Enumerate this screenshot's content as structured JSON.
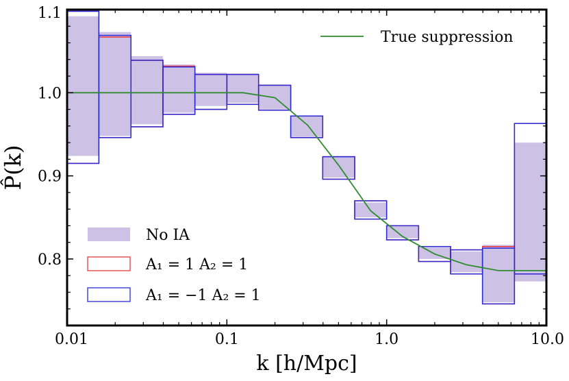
{
  "chart_data": {
    "type": "area",
    "xlabel": "k  [h/Mpc]",
    "ylabel": "P̂(k)",
    "xscale": "log",
    "xlim": [
      0.01,
      10.0
    ],
    "ylim": [
      0.72,
      1.1
    ],
    "x_tick_values": [
      0.01,
      0.1,
      1.0,
      10.0
    ],
    "x_tick_labels": [
      "0.01",
      "0.1",
      "1.0",
      "10.0"
    ],
    "y_tick_values": [
      0.8,
      0.9,
      1.0,
      1.1
    ],
    "y_tick_labels": [
      "0.8",
      "0.9",
      "1.0",
      "1.1"
    ],
    "bin_edges": [
      0.01,
      0.0158,
      0.0251,
      0.0398,
      0.0631,
      0.1,
      0.158,
      0.251,
      0.398,
      0.631,
      1.0,
      1.585,
      2.512,
      3.981,
      6.31,
      10.0
    ],
    "series": [
      {
        "name": "No IA",
        "style": "filled",
        "color": "#cdc1e6",
        "lower": [
          0.924,
          0.948,
          0.962,
          0.976,
          0.984,
          0.988,
          0.98,
          0.947,
          0.898,
          0.85,
          0.825,
          0.8,
          0.784,
          0.748,
          0.773
        ],
        "upper": [
          1.092,
          1.073,
          1.044,
          1.034,
          1.024,
          1.023,
          1.009,
          0.972,
          0.924,
          0.868,
          0.839,
          0.814,
          0.809,
          0.817,
          0.94
        ]
      },
      {
        "name": "A₁ = 1   A₂ = 1",
        "style": "outline",
        "color": "#e8383d",
        "lower": [
          0.915,
          0.946,
          0.959,
          0.974,
          0.98,
          0.986,
          0.979,
          0.946,
          0.896,
          0.848,
          0.823,
          0.797,
          0.782,
          0.746,
          0.782
        ],
        "upper": [
          1.098,
          1.067,
          1.039,
          1.032,
          1.022,
          1.022,
          1.009,
          0.972,
          0.923,
          0.87,
          0.84,
          0.815,
          0.811,
          0.815,
          0.963
        ]
      },
      {
        "name": "A₁ = −1   A₂ = 1",
        "style": "outline",
        "color": "#2a2ad8",
        "lower": [
          0.915,
          0.946,
          0.959,
          0.974,
          0.98,
          0.986,
          0.979,
          0.946,
          0.896,
          0.848,
          0.823,
          0.797,
          0.782,
          0.746,
          0.782
        ],
        "upper": [
          1.098,
          1.069,
          1.039,
          1.031,
          1.022,
          1.022,
          1.009,
          0.972,
          0.923,
          0.87,
          0.84,
          0.815,
          0.811,
          0.813,
          0.963
        ]
      },
      {
        "name": "True suppression",
        "style": "line",
        "color": "#2e8b2e",
        "x": [
          0.01,
          0.0158,
          0.0251,
          0.0398,
          0.0631,
          0.1,
          0.126,
          0.2,
          0.32,
          0.5,
          0.794,
          1.26,
          2.0,
          3.16,
          5.0,
          7.94,
          10.0
        ],
        "y": [
          1.0,
          1.0,
          1.0,
          1.0,
          1.0,
          1.0,
          1.0,
          0.994,
          0.961,
          0.913,
          0.858,
          0.827,
          0.806,
          0.793,
          0.786,
          0.786,
          0.786
        ]
      }
    ],
    "legends": [
      {
        "entries": [
          "No IA",
          "A₁ = 1   A₂ = 1",
          "A₁ = −1   A₂ = 1"
        ],
        "placement": "lower-left"
      },
      {
        "entries": [
          "True suppression"
        ],
        "placement": "top-right"
      }
    ]
  }
}
